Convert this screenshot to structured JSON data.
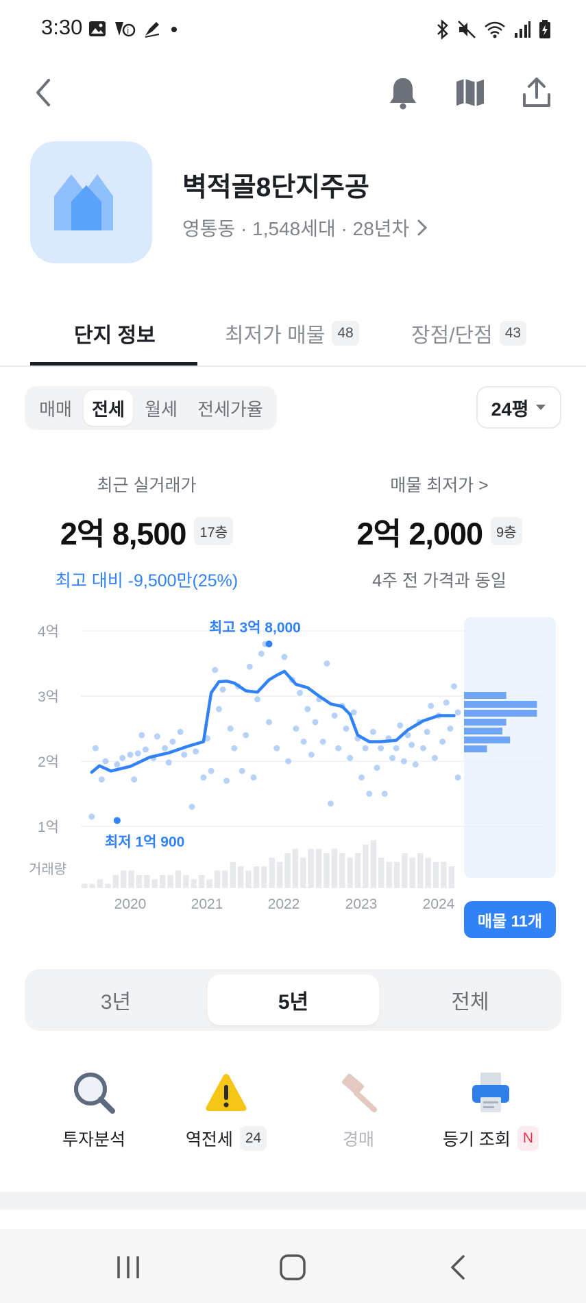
{
  "status_bar": {
    "time": "3:30",
    "left_icons": [
      "gallery-icon",
      "notification-icon",
      "pen-icon",
      "dot-icon"
    ],
    "right_icons": [
      "bluetooth-icon",
      "mute-icon",
      "wifi-icon",
      "signal-icon",
      "battery-icon"
    ]
  },
  "nav": {
    "icons": [
      "back-icon",
      "bell-icon",
      "map-icon",
      "share-icon"
    ]
  },
  "complex": {
    "name": "벽적골8단지주공",
    "meta": "영통동 · 1,548세대 · 28년차",
    "icon": "house-icon"
  },
  "tabs": [
    {
      "label": "단지 정보",
      "badge": ""
    },
    {
      "label": "최저가 매물",
      "badge": "48"
    },
    {
      "label": "장점/단점",
      "badge": "43"
    }
  ],
  "deal_types": [
    "매매",
    "전세",
    "월세",
    "전세가율"
  ],
  "selected_deal_type": "전세",
  "size_select": {
    "value": "24평"
  },
  "recent": {
    "label": "최근 실거래가",
    "price": "2억 8,500",
    "floor": "17층",
    "compare": "최고 대비 -9,500만(25%)"
  },
  "lowest": {
    "label": "매물 최저가 >",
    "price": "2억 2,000",
    "floor": "9층",
    "compare": "4주 전 가격과 동일"
  },
  "chart_data": {
    "type": "scatter",
    "y_ticks": [
      "4억",
      "3억",
      "2억",
      "1억"
    ],
    "volume_label": "거래량",
    "x_ticks": [
      "2020",
      "2021",
      "2022",
      "2023",
      "2024"
    ],
    "max_annotation": "최고 3억 8,000",
    "min_annotation": "최저 1억 900",
    "trend_line": {
      "x": [
        2019.5,
        2019.6,
        2019.75,
        2020.0,
        2020.25,
        2020.5,
        2020.75,
        2020.95,
        2021.05,
        2021.15,
        2021.25,
        2021.35,
        2021.5,
        2021.65,
        2021.8,
        2021.9,
        2022.0,
        2022.15,
        2022.3,
        2022.45,
        2022.6,
        2022.75,
        2022.85,
        2022.95,
        2023.1,
        2023.25,
        2023.45,
        2023.6,
        2023.8,
        2024.0,
        2024.1,
        2024.2
      ],
      "y": [
        1.83,
        1.93,
        1.85,
        1.92,
        2.06,
        2.13,
        2.23,
        2.3,
        3.05,
        3.22,
        3.23,
        3.2,
        3.08,
        3.06,
        3.25,
        3.32,
        3.38,
        3.18,
        3.13,
        3.0,
        2.88,
        2.84,
        2.72,
        2.4,
        2.3,
        2.3,
        2.32,
        2.48,
        2.62,
        2.7,
        2.7,
        2.7
      ]
    },
    "transactions": [
      {
        "x": 2019.5,
        "y": 1.15
      },
      {
        "x": 2019.55,
        "y": 2.2
      },
      {
        "x": 2019.63,
        "y": 1.72
      },
      {
        "x": 2019.68,
        "y": 2.0
      },
      {
        "x": 2019.83,
        "y": 1.95
      },
      {
        "x": 2019.9,
        "y": 2.05
      },
      {
        "x": 2020.0,
        "y": 2.1
      },
      {
        "x": 2020.05,
        "y": 1.72
      },
      {
        "x": 2020.1,
        "y": 2.12
      },
      {
        "x": 2020.15,
        "y": 2.4
      },
      {
        "x": 2020.2,
        "y": 2.18
      },
      {
        "x": 2020.3,
        "y": 2.05
      },
      {
        "x": 2020.35,
        "y": 2.38
      },
      {
        "x": 2020.45,
        "y": 2.2
      },
      {
        "x": 2020.5,
        "y": 1.98
      },
      {
        "x": 2020.55,
        "y": 2.3
      },
      {
        "x": 2020.65,
        "y": 2.45
      },
      {
        "x": 2020.7,
        "y": 2.1
      },
      {
        "x": 2020.8,
        "y": 1.3
      },
      {
        "x": 2020.85,
        "y": 2.15
      },
      {
        "x": 2020.95,
        "y": 1.75
      },
      {
        "x": 2021.0,
        "y": 2.35
      },
      {
        "x": 2021.05,
        "y": 1.85
      },
      {
        "x": 2021.1,
        "y": 3.4
      },
      {
        "x": 2021.15,
        "y": 2.8
      },
      {
        "x": 2021.2,
        "y": 3.1
      },
      {
        "x": 2021.25,
        "y": 1.7
      },
      {
        "x": 2021.3,
        "y": 2.5
      },
      {
        "x": 2021.35,
        "y": 2.2
      },
      {
        "x": 2021.4,
        "y": 3.15
      },
      {
        "x": 2021.45,
        "y": 1.85
      },
      {
        "x": 2021.5,
        "y": 2.4
      },
      {
        "x": 2021.55,
        "y": 3.45
      },
      {
        "x": 2021.6,
        "y": 1.75
      },
      {
        "x": 2021.65,
        "y": 2.95
      },
      {
        "x": 2021.7,
        "y": 3.65
      },
      {
        "x": 2021.75,
        "y": 3.8
      },
      {
        "x": 2021.8,
        "y": 2.6
      },
      {
        "x": 2021.9,
        "y": 2.2
      },
      {
        "x": 2022.0,
        "y": 3.6
      },
      {
        "x": 2022.05,
        "y": 2.0
      },
      {
        "x": 2022.1,
        "y": 3.25
      },
      {
        "x": 2022.15,
        "y": 2.5
      },
      {
        "x": 2022.2,
        "y": 3.05
      },
      {
        "x": 2022.25,
        "y": 2.3
      },
      {
        "x": 2022.3,
        "y": 2.8
      },
      {
        "x": 2022.35,
        "y": 2.1
      },
      {
        "x": 2022.4,
        "y": 2.6
      },
      {
        "x": 2022.45,
        "y": 2.95
      },
      {
        "x": 2022.5,
        "y": 2.3
      },
      {
        "x": 2022.55,
        "y": 3.5
      },
      {
        "x": 2022.6,
        "y": 1.35
      },
      {
        "x": 2022.65,
        "y": 2.7
      },
      {
        "x": 2022.7,
        "y": 2.2
      },
      {
        "x": 2022.75,
        "y": 2.85
      },
      {
        "x": 2022.8,
        "y": 2.5
      },
      {
        "x": 2022.85,
        "y": 2.05
      },
      {
        "x": 2022.9,
        "y": 2.75
      },
      {
        "x": 2022.95,
        "y": 2.35
      },
      {
        "x": 2023.0,
        "y": 1.75
      },
      {
        "x": 2023.05,
        "y": 2.2
      },
      {
        "x": 2023.1,
        "y": 1.5
      },
      {
        "x": 2023.15,
        "y": 2.45
      },
      {
        "x": 2023.2,
        "y": 1.9
      },
      {
        "x": 2023.25,
        "y": 2.2
      },
      {
        "x": 2023.3,
        "y": 1.5
      },
      {
        "x": 2023.35,
        "y": 2.35
      },
      {
        "x": 2023.4,
        "y": 2.05
      },
      {
        "x": 2023.45,
        "y": 2.2
      },
      {
        "x": 2023.5,
        "y": 2.55
      },
      {
        "x": 2023.55,
        "y": 2.0
      },
      {
        "x": 2023.6,
        "y": 2.4
      },
      {
        "x": 2023.65,
        "y": 2.25
      },
      {
        "x": 2023.7,
        "y": 1.95
      },
      {
        "x": 2023.75,
        "y": 2.6
      },
      {
        "x": 2023.8,
        "y": 2.2
      },
      {
        "x": 2023.85,
        "y": 2.45
      },
      {
        "x": 2023.9,
        "y": 2.85
      },
      {
        "x": 2023.95,
        "y": 2.05
      },
      {
        "x": 2024.0,
        "y": 2.7
      },
      {
        "x": 2024.05,
        "y": 2.3
      },
      {
        "x": 2024.1,
        "y": 2.9
      },
      {
        "x": 2024.15,
        "y": 2.5
      },
      {
        "x": 2024.2,
        "y": 3.15
      },
      {
        "x": 2024.25,
        "y": 1.75
      },
      {
        "x": 2024.25,
        "y": 2.75
      }
    ],
    "min_point": {
      "x": 2019.83,
      "y": 1.09
    },
    "max_point": {
      "x": 2021.8,
      "y": 3.8
    },
    "listing_distribution": [
      0.55,
      0.95,
      0.95,
      0.55,
      0.5,
      0.6,
      0.3
    ],
    "volume": [
      1,
      1,
      2,
      1,
      3,
      4,
      4,
      3,
      3,
      2,
      3,
      3,
      4,
      3,
      2,
      3,
      2,
      4,
      4,
      6,
      5,
      4,
      5,
      5,
      7,
      6,
      8,
      9,
      7,
      9,
      9,
      8,
      9,
      8,
      7,
      8,
      10,
      11,
      7,
      6,
      6,
      8,
      7,
      8,
      7,
      6,
      6,
      5
    ]
  },
  "listings_button": "매물 11개",
  "periods": [
    "3년",
    "5년",
    "전체"
  ],
  "selected_period": "5년",
  "quick_actions": [
    {
      "label": "투자분석",
      "badge": "",
      "icon": "magnifier-icon"
    },
    {
      "label": "역전세",
      "badge": "24",
      "icon": "warning-icon"
    },
    {
      "label": "경매",
      "badge": "",
      "icon": "gavel-icon"
    },
    {
      "label": "등기 조회",
      "badge": "N",
      "icon": "printer-icon"
    }
  ],
  "colors": {
    "accent": "#3182f6",
    "accent_light": "#dbe9fd",
    "blue_text": "#3182f6",
    "warning": "#f5c518",
    "new_badge": "#e8344e"
  },
  "system_nav": [
    "recents-icon",
    "home-icon",
    "back-nav-icon"
  ]
}
